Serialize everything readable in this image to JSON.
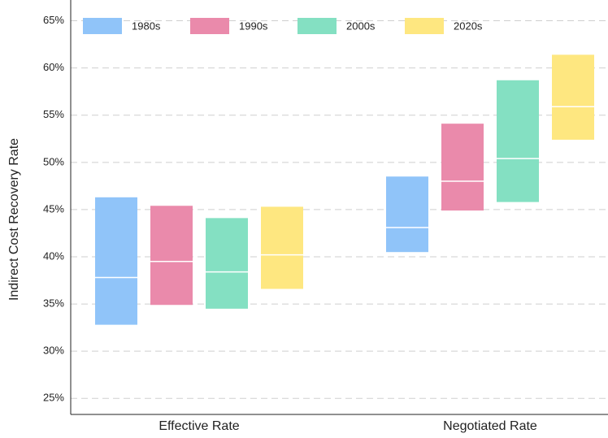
{
  "chart_data": {
    "type": "range-bar",
    "y_label": "Indirect Cost Recovery Rate",
    "categories": [
      "Effective Rate",
      "Negotiated Rate"
    ],
    "series": [
      {
        "name": "1980s",
        "color": "#90c4f9",
        "low": [
          32.8,
          40.5
        ],
        "median": [
          37.8,
          43.1
        ],
        "high": [
          46.3,
          48.5
        ]
      },
      {
        "name": "1990s",
        "color": "#ea8aab",
        "low": [
          34.9,
          44.9
        ],
        "median": [
          39.5,
          48.0
        ],
        "high": [
          45.4,
          54.1
        ]
      },
      {
        "name": "2000s",
        "color": "#84e0c2",
        "low": [
          34.5,
          45.8
        ],
        "median": [
          38.4,
          50.4
        ],
        "high": [
          44.1,
          58.7
        ]
      },
      {
        "name": "2020s",
        "color": "#fee780",
        "low": [
          36.6,
          52.4
        ],
        "median": [
          40.2,
          55.9
        ],
        "high": [
          45.3,
          61.4
        ]
      }
    ],
    "ylim": [
      23.3,
      67.2
    ],
    "yticks": [
      {
        "value": 25,
        "label": "25%"
      },
      {
        "value": 30,
        "label": "30%"
      },
      {
        "value": 35,
        "label": "35%"
      },
      {
        "value": 40,
        "label": "40%"
      },
      {
        "value": 45,
        "label": "45%"
      },
      {
        "value": 50,
        "label": "50%"
      },
      {
        "value": 55,
        "label": "55%"
      },
      {
        "value": 60,
        "label": "60%"
      },
      {
        "value": 65,
        "label": "65%"
      }
    ],
    "grid": true,
    "legend": "top-left"
  }
}
